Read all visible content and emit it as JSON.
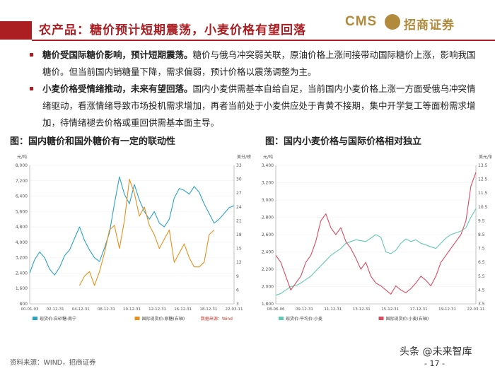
{
  "header": {
    "title": "农产品：糖价预计短期震荡，小麦价格有望回落",
    "logo_cms": "CMS",
    "logo_badge_icon": "cms-circle-logo-icon",
    "logo_name": "招商证券"
  },
  "bullets": [
    {
      "lead": "糖价受国际糖价影响，预计短期震荡。",
      "body": "糖价与俄乌冲突弱关联，原油价格上涨间接带动国际糖价上涨，影响我国糖价。但当前国内销糖量下降，需求偏弱，预计价格以震荡调整为主。"
    },
    {
      "lead": "小麦价格受情绪推动，未来有望回落。",
      "body": "国内小麦供需基本自给自足，当前国内小麦价格上涨一方面受俄乌冲突情绪驱动，看涨情绪导致市场投机需求增加，再者当前处于小麦供应处于青黄不接期，集中开学复工等面粉需求增加，待情绪褪去价格或重回供需基本面主导。"
    }
  ],
  "charts": {
    "left": {
      "caption": "图：国内糖价和国外糖价有一定的联动性",
      "source_note": "数据来源：Wind"
    },
    "right": {
      "caption": "图：国内小麦价格与国际价格相对独立"
    }
  },
  "chart_data": [
    {
      "type": "line",
      "ylabel_left": "元/吨",
      "ylabel_right": "美分/磅",
      "ylim_left": [
        800,
        8000
      ],
      "yticks_left": [
        "800",
        "1,600",
        "2,400",
        "3,200",
        "4,000",
        "4,800",
        "5,600",
        "6,400",
        "7,200",
        "8,000"
      ],
      "ylim_right": [
        3,
        33
      ],
      "yticks_right": [
        "3",
        "6",
        "9",
        "12",
        "15",
        "18",
        "21",
        "24",
        "27",
        "30",
        "33"
      ],
      "x_ticks": [
        "00-01-03",
        "02-12-31",
        "04-12-31",
        "08-12-31",
        "10-12-31",
        "12-12-31",
        "16-12-31",
        "18-12-31",
        "22-03-11"
      ],
      "series": [
        {
          "name": "现货价:白砂糖:南宁",
          "color": "#2aa3c6",
          "axis": "left",
          "values": [
            2400,
            3100,
            3500,
            3200,
            2600,
            2300,
            2700,
            3300,
            3600,
            4200,
            4800,
            4100,
            3600,
            3200,
            3000,
            3700,
            4500,
            6000,
            7400,
            6500,
            6000,
            7000,
            6200,
            5600,
            5200,
            5600,
            5000,
            4800,
            5200,
            6300,
            6800,
            6700,
            6500,
            6900,
            6600,
            6000,
            5500,
            5000,
            5200,
            5500,
            5800,
            5900
          ]
        },
        {
          "name": "国际现货价:原糖(右轴)",
          "color": "#e88f1c",
          "axis": "right",
          "start_index": 10,
          "values": [
            7,
            9,
            10,
            7,
            10,
            14,
            19,
            20,
            15,
            21,
            30,
            27,
            22,
            24,
            20,
            18,
            15,
            17,
            19,
            12,
            14,
            16,
            13,
            11,
            11,
            12,
            18,
            19
          ]
        }
      ]
    },
    {
      "type": "line",
      "ylabel_left": "元/吨",
      "ylabel_right": "美元/蒲式耳",
      "ylim_left": [
        1800,
        3400
      ],
      "yticks_left": [
        "1,800",
        "2,000",
        "2,200",
        "2,400",
        "2,600",
        "2,800",
        "3,000",
        "3,200",
        "3,400"
      ],
      "ylim_right": [
        3.5,
        13.5
      ],
      "yticks_right": [
        "3.5",
        "4.5",
        "5.5",
        "6.5",
        "7.5",
        "8.5",
        "9.5",
        "10.5",
        "11.5",
        "12.5",
        "13.5"
      ],
      "x_ticks": [
        "08-06-06",
        "09-12-31",
        "11-12-31",
        "13-12-31",
        "15-12-31",
        "17-12-31",
        "19-12-31",
        "22-03-11"
      ],
      "series": [
        {
          "name": "现货价:平均价:小麦",
          "color": "#62c9b2",
          "axis": "left",
          "values": [
            1900,
            1920,
            1960,
            2000,
            2010,
            2040,
            2080,
            2120,
            2180,
            2240,
            2300,
            2360,
            2400,
            2440,
            2500,
            2520,
            2540,
            2530,
            2520,
            2560,
            2600,
            2570,
            2400,
            2380,
            2420,
            2500,
            2550,
            2520,
            2540,
            2500,
            2480,
            2460,
            2440,
            2500,
            2560,
            2600,
            2620,
            2640,
            2680,
            2800,
            2900
          ]
        },
        {
          "name": "国际现货价:小麦(右轴)",
          "color": "#d94b5f",
          "axis": "right",
          "values": [
            7,
            6.5,
            5.5,
            4.5,
            5,
            5.5,
            6.5,
            7,
            8,
            9.5,
            10,
            9,
            8.5,
            9,
            8,
            7.5,
            6.8,
            6,
            6.5,
            5.5,
            5,
            4.8,
            4.5,
            4.2,
            4.8,
            4.5,
            4.3,
            4.6,
            5,
            5.5,
            5.2,
            4.8,
            5.5,
            6.5,
            7,
            7.5,
            8,
            8.5,
            9.5,
            12,
            13
          ]
        }
      ]
    }
  ],
  "footer": {
    "source": "资料来源：WIND，招商证券",
    "watermark": "头条 @未来智库",
    "page": "- 17 -"
  }
}
